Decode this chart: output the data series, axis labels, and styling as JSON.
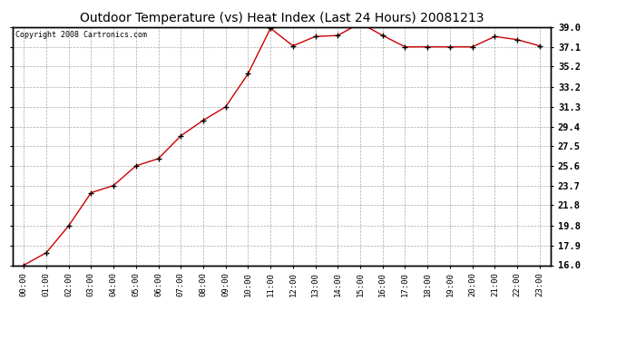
{
  "title": "Outdoor Temperature (vs) Heat Index (Last 24 Hours) 20081213",
  "copyright_text": "Copyright 2008 Cartronics.com",
  "x_labels": [
    "00:00",
    "01:00",
    "02:00",
    "03:00",
    "04:00",
    "05:00",
    "06:00",
    "07:00",
    "08:00",
    "09:00",
    "10:00",
    "11:00",
    "12:00",
    "13:00",
    "14:00",
    "15:00",
    "16:00",
    "17:00",
    "18:00",
    "19:00",
    "20:00",
    "21:00",
    "22:00",
    "23:00"
  ],
  "y_values": [
    16.0,
    17.2,
    19.8,
    23.0,
    23.7,
    25.6,
    26.3,
    28.5,
    30.0,
    31.3,
    34.5,
    38.9,
    37.2,
    38.1,
    38.2,
    39.4,
    38.2,
    37.1,
    37.1,
    37.1,
    37.1,
    38.1,
    37.8,
    37.2
  ],
  "y_ticks": [
    16.0,
    17.9,
    19.8,
    21.8,
    23.7,
    25.6,
    27.5,
    29.4,
    31.3,
    33.2,
    35.2,
    37.1,
    39.0
  ],
  "y_tick_labels": [
    "16.0",
    "17.9",
    "19.8",
    "21.8",
    "23.7",
    "25.6",
    "27.5",
    "29.4",
    "31.3",
    "33.2",
    "35.2",
    "37.1",
    "39.0"
  ],
  "ylim": [
    16.0,
    39.0
  ],
  "line_color": "#cc0000",
  "marker": "+",
  "marker_color": "#000000",
  "bg_color": "#ffffff",
  "plot_bg_color": "#ffffff",
  "grid_color": "#aaaaaa",
  "grid_style": "--",
  "title_fontsize": 10,
  "copyright_fontsize": 6
}
